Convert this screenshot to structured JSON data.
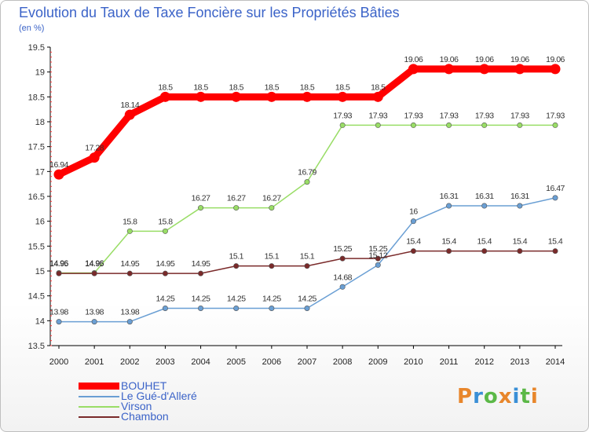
{
  "title": "Evolution du Taux de Taxe Foncière sur les Propriétés Bâties",
  "unit": "(en %)",
  "logo": {
    "text": "Proxiti",
    "colors": [
      "#e8862b",
      "#3a8fd6",
      "#5bb847",
      "#e8862b",
      "#3a8fd6",
      "#5bb847",
      "#e8862b"
    ]
  },
  "chart_data": {
    "type": "line",
    "x": [
      "2000",
      "2001",
      "2002",
      "2003",
      "2004",
      "2005",
      "2006",
      "2007",
      "2008",
      "2009",
      "2010",
      "2011",
      "2012",
      "2013",
      "2014"
    ],
    "ylim": [
      13.5,
      19.5
    ],
    "yticks": [
      13.5,
      14,
      14.5,
      15,
      15.5,
      16,
      16.5,
      17,
      17.5,
      18,
      18.5,
      19,
      19.5
    ],
    "grid": false,
    "legend_placement": "bottom-left",
    "series": [
      {
        "name": "BOUHET",
        "color": "#ff0000",
        "labels": [
          "16.94",
          "17.28",
          "18.14",
          "18.5",
          "18.5",
          "18.5",
          "18.5",
          "18.5",
          "18.5",
          "18.5",
          "19.06",
          "19.06",
          "19.06",
          "19.06",
          "19.06"
        ],
        "values": [
          16.94,
          17.28,
          18.14,
          18.5,
          18.5,
          18.5,
          18.5,
          18.5,
          18.5,
          18.5,
          19.06,
          19.06,
          19.06,
          19.06,
          19.06
        ]
      },
      {
        "name": "Le Gué-d'Alleré",
        "color": "#6a9fd4",
        "labels": [
          "13.98",
          "13.98",
          "13.98",
          "14.25",
          "14.25",
          "14.25",
          "14.25",
          "14.25",
          "14.68",
          "15.12",
          "16",
          "16.31",
          "16.31",
          "16.31",
          "16.47"
        ],
        "values": [
          13.98,
          13.98,
          13.98,
          14.25,
          14.25,
          14.25,
          14.25,
          14.25,
          14.68,
          15.12,
          16,
          16.31,
          16.31,
          16.31,
          16.47
        ]
      },
      {
        "name": "Virson",
        "color": "#99dd66",
        "labels": [
          "14.96",
          "14.96",
          "15.8",
          "15.8",
          "16.27",
          "16.27",
          "16.27",
          "16.79",
          "17.93",
          "17.93",
          "17.93",
          "17.93",
          "17.93",
          "17.93",
          "17.93"
        ],
        "values": [
          14.96,
          14.96,
          15.8,
          15.8,
          16.27,
          16.27,
          16.27,
          16.79,
          17.93,
          17.93,
          17.93,
          17.93,
          17.93,
          17.93,
          17.93
        ]
      },
      {
        "name": "Chambon",
        "color": "#7a2a2a",
        "labels": [
          "14.95",
          "14.95",
          "14.95",
          "14.95",
          "14.95",
          "15.1",
          "15.1",
          "15.1",
          "15.25",
          "15.25",
          "15.4",
          "15.4",
          "15.4",
          "15.4",
          "15.4"
        ],
        "values": [
          14.95,
          14.95,
          14.95,
          14.95,
          14.95,
          15.1,
          15.1,
          15.1,
          15.25,
          15.25,
          15.4,
          15.4,
          15.4,
          15.4,
          15.4
        ]
      }
    ]
  }
}
